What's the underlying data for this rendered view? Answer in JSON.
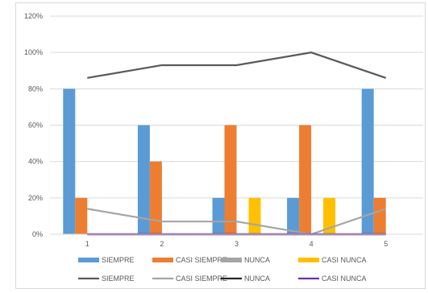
{
  "chart_data": {
    "type": "bar",
    "title": "",
    "xlabel": "",
    "ylabel": "",
    "categories": [
      "1",
      "2",
      "3",
      "4",
      "5"
    ],
    "ylim": [
      0,
      120
    ],
    "yticks": [
      "0%",
      "20%",
      "40%",
      "60%",
      "80%",
      "100%",
      "120%"
    ],
    "grid": true,
    "legend_position": "bottom",
    "bar_series": [
      {
        "name": "SIEMPRE",
        "color": "#5b9bd5",
        "values": [
          80,
          60,
          20,
          20,
          80
        ]
      },
      {
        "name": "CASI SIEMPRE",
        "color": "#ed7d31",
        "values": [
          20,
          40,
          60,
          60,
          20
        ]
      },
      {
        "name": "NUNCA",
        "color": "#a5a5a5",
        "values": [
          0,
          0,
          0,
          0,
          0
        ]
      },
      {
        "name": "CASI NUNCA",
        "color": "#ffc000",
        "values": [
          0,
          0,
          20,
          20,
          0
        ]
      }
    ],
    "line_series": [
      {
        "name": "SIEMPRE",
        "color": "#595959",
        "values": [
          86,
          93,
          93,
          100,
          86
        ]
      },
      {
        "name": "CASI SIEMPRE",
        "color": "#a5a5a5",
        "values": [
          14,
          7,
          7,
          0,
          14
        ]
      },
      {
        "name": "NUNCA",
        "color": "#262626",
        "values": [
          0,
          0,
          0,
          0,
          0
        ]
      },
      {
        "name": "CASI NUNCA",
        "color": "#7030a0",
        "values": [
          0,
          0,
          0,
          0,
          0
        ]
      }
    ]
  }
}
